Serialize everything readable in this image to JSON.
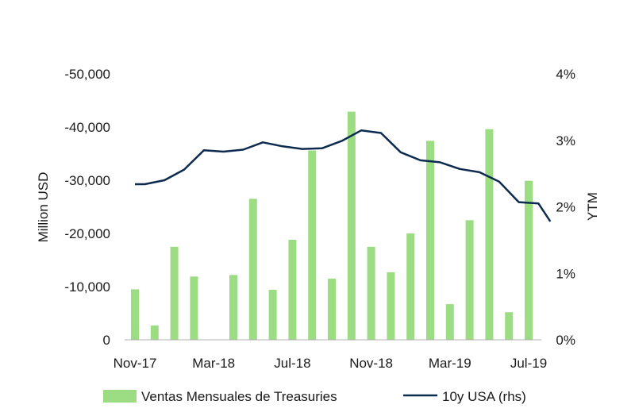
{
  "chart_data": {
    "type": "bar+line",
    "title": "",
    "categories": [
      "Nov-17",
      "Dec-17",
      "Jan-18",
      "Feb-18",
      "Mar-18",
      "Apr-18",
      "May-18",
      "Jun-18",
      "Jul-18",
      "Aug-18",
      "Sep-18",
      "Oct-18",
      "Nov-18",
      "Dec-18",
      "Jan-19",
      "Feb-19",
      "Mar-19",
      "Apr-19",
      "May-19",
      "Jun-19",
      "Jul-19"
    ],
    "x_tick_labels": [
      "Nov-17",
      "Mar-18",
      "Jul-18",
      "Nov-18",
      "Mar-19",
      "Jul-19"
    ],
    "x_tick_indices": [
      0,
      4,
      8,
      12,
      16,
      20
    ],
    "series": [
      {
        "name": "Ventas Mensuales de Treasuries",
        "type": "bar",
        "axis": "left",
        "color": "#9cdc83",
        "values": [
          -9500,
          -2700,
          -17500,
          -11900,
          0,
          -12200,
          -26500,
          -9400,
          -18800,
          -35600,
          -11500,
          -42900,
          -17500,
          -12700,
          -20000,
          -37400,
          -6700,
          -22500,
          -39600,
          -5200,
          -29900
        ]
      },
      {
        "name": "10y USA (rhs)",
        "type": "line",
        "axis": "right",
        "color": "#0d2a4f",
        "x": [
          0,
          0.5,
          1.5,
          2.5,
          3.5,
          4.5,
          5.5,
          6.5,
          7.5,
          8.5,
          9.5,
          10.5,
          11.5,
          12.5,
          13.5,
          14.5,
          15.5,
          16.5,
          17.5,
          18.5,
          19.5,
          20.5,
          21.1
        ],
        "values": [
          2.34,
          2.34,
          2.4,
          2.56,
          2.85,
          2.83,
          2.86,
          2.97,
          2.91,
          2.87,
          2.88,
          2.99,
          3.15,
          3.11,
          2.82,
          2.7,
          2.67,
          2.57,
          2.52,
          2.38,
          2.07,
          2.05,
          1.78
        ]
      }
    ],
    "y_left": {
      "label": "Million USD",
      "range": [
        0,
        -50000
      ],
      "ticks": [
        0,
        -10000,
        -20000,
        -30000,
        -40000,
        -50000
      ],
      "tick_labels": [
        "0",
        "-10,000",
        "-20,000",
        "-30,000",
        "-40,000",
        "-50,000"
      ]
    },
    "y_right": {
      "label": "YTM",
      "range": [
        0,
        4
      ],
      "ticks": [
        0,
        1,
        2,
        3,
        4
      ],
      "tick_labels": [
        "0%",
        "1%",
        "2%",
        "3%",
        "4%"
      ]
    },
    "grid": false,
    "legend": {
      "position": "bottom",
      "entries": [
        "Ventas Mensuales de Treasuries",
        "10y USA (rhs)"
      ]
    }
  }
}
